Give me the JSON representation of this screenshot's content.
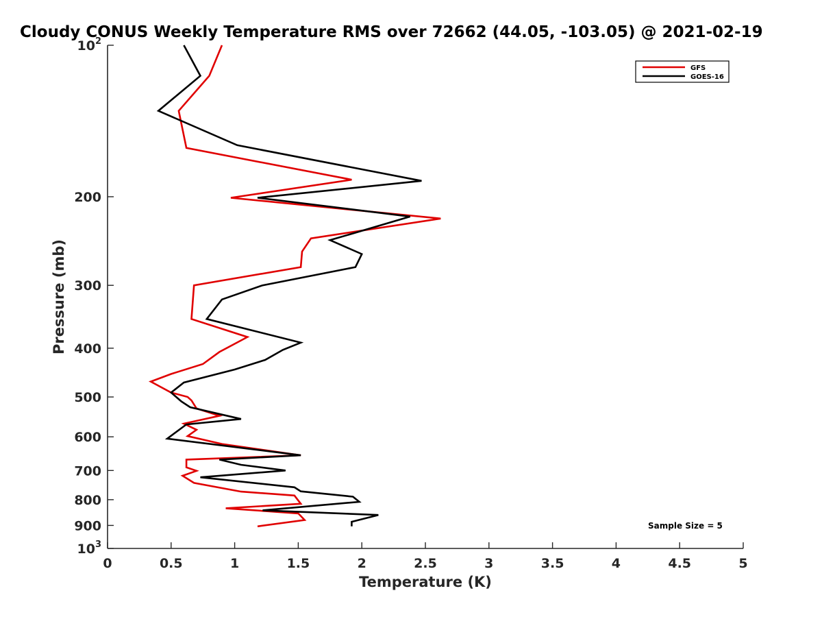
{
  "chart_data": {
    "type": "line",
    "title": "Cloudy CONUS Weekly Temperature RMS over 72662 (44.05, -103.05) @ 2021-02-19",
    "xlabel": "Temperature (K)",
    "ylabel": "Pressure (mb)",
    "xlim": [
      0,
      5
    ],
    "ylim": [
      100,
      1000
    ],
    "y_scale": "log",
    "y_reversed": true,
    "grid": false,
    "legend_position": "top-right",
    "x_ticks": [
      0,
      0.5,
      1,
      1.5,
      2,
      2.5,
      3,
      3.5,
      4,
      4.5,
      5
    ],
    "x_tick_labels": [
      "0",
      "0.5",
      "1",
      "1.5",
      "2",
      "2.5",
      "3",
      "3.5",
      "4",
      "4.5",
      "5"
    ],
    "y_ticks": [
      100,
      200,
      300,
      400,
      500,
      600,
      700,
      800,
      900,
      1000
    ],
    "y_tick_labels": [
      {
        "base": "10",
        "exp": "2"
      },
      {
        "base": "200",
        "exp": ""
      },
      {
        "base": "300",
        "exp": ""
      },
      {
        "base": "400",
        "exp": ""
      },
      {
        "base": "500",
        "exp": ""
      },
      {
        "base": "600",
        "exp": ""
      },
      {
        "base": "700",
        "exp": ""
      },
      {
        "base": "800",
        "exp": ""
      },
      {
        "base": "900",
        "exp": ""
      },
      {
        "base": "10",
        "exp": "3"
      }
    ],
    "annotation": "Sample Size = 5",
    "series": [
      {
        "name": "GFS",
        "color": "#e00000",
        "points": [
          [
            0.9,
            100
          ],
          [
            0.8,
            115
          ],
          [
            0.56,
            135
          ],
          [
            0.62,
            160
          ],
          [
            1.92,
            185
          ],
          [
            0.97,
            201
          ],
          [
            2.62,
            221
          ],
          [
            1.6,
            242
          ],
          [
            1.53,
            257
          ],
          [
            1.52,
            276
          ],
          [
            0.68,
            300
          ],
          [
            0.66,
            350
          ],
          [
            1.1,
            380
          ],
          [
            0.88,
            407
          ],
          [
            0.75,
            430
          ],
          [
            0.5,
            450
          ],
          [
            0.34,
            466
          ],
          [
            0.5,
            490
          ],
          [
            0.63,
            500
          ],
          [
            0.66,
            508
          ],
          [
            0.7,
            527
          ],
          [
            0.88,
            545
          ],
          [
            0.6,
            565
          ],
          [
            0.7,
            581
          ],
          [
            0.63,
            598
          ],
          [
            0.9,
            620
          ],
          [
            1.52,
            653
          ],
          [
            0.62,
            666
          ],
          [
            0.62,
            690
          ],
          [
            0.7,
            701
          ],
          [
            0.59,
            717
          ],
          [
            0.68,
            741
          ],
          [
            1.05,
            771
          ],
          [
            1.47,
            785
          ],
          [
            1.52,
            815
          ],
          [
            0.93,
            832
          ],
          [
            1.5,
            852
          ],
          [
            1.55,
            878
          ],
          [
            1.18,
            904
          ]
        ]
      },
      {
        "name": "GOES-16",
        "color": "#000000",
        "points": [
          [
            0.6,
            100
          ],
          [
            0.73,
            115
          ],
          [
            0.4,
            135
          ],
          [
            1.02,
            158
          ],
          [
            2.47,
            186
          ],
          [
            1.18,
            201
          ],
          [
            2.38,
            219
          ],
          [
            1.75,
            244
          ],
          [
            2.0,
            260
          ],
          [
            1.95,
            276
          ],
          [
            1.22,
            300
          ],
          [
            0.9,
            320
          ],
          [
            0.78,
            350
          ],
          [
            1.52,
            390
          ],
          [
            1.38,
            403
          ],
          [
            1.24,
            422
          ],
          [
            1.0,
            441
          ],
          [
            0.6,
            468
          ],
          [
            0.5,
            490
          ],
          [
            0.58,
            510
          ],
          [
            0.65,
            524
          ],
          [
            1.05,
            553
          ],
          [
            0.62,
            567
          ],
          [
            0.47,
            605
          ],
          [
            1.52,
            653
          ],
          [
            0.88,
            666
          ],
          [
            1.05,
            682
          ],
          [
            1.4,
            700
          ],
          [
            0.73,
            722
          ],
          [
            1.47,
            756
          ],
          [
            1.52,
            770
          ],
          [
            1.93,
            789
          ],
          [
            1.98,
            808
          ],
          [
            1.22,
            840
          ],
          [
            2.13,
            858
          ],
          [
            1.92,
            885
          ],
          [
            1.92,
            904
          ]
        ]
      }
    ]
  }
}
